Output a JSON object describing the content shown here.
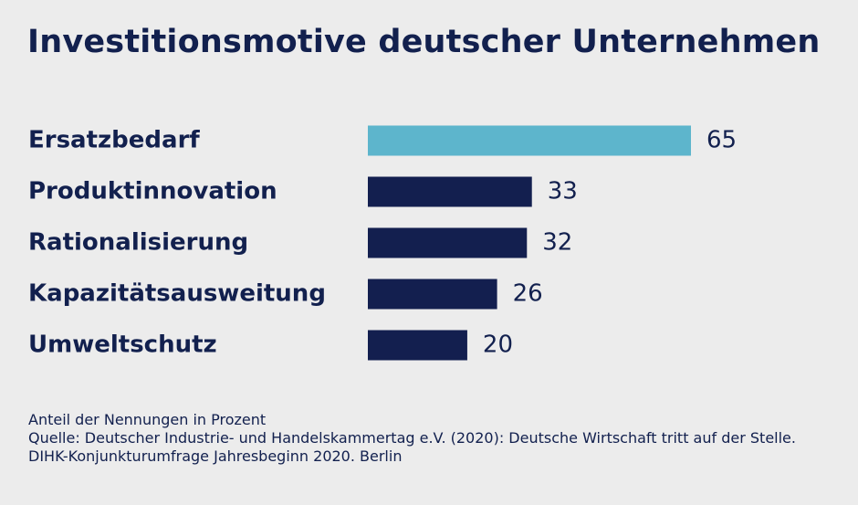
{
  "chart_data": {
    "type": "bar",
    "orientation": "horizontal",
    "title": "Investitionsmotive deutscher Unternehmen",
    "categories": [
      "Ersatzbedarf",
      "Produktinnovation",
      "Rationalisierung",
      "Kapazitätsausweitung",
      "Umweltschutz"
    ],
    "values": [
      65,
      33,
      32,
      26,
      20
    ],
    "value_labels": [
      "65",
      "33",
      "32",
      "26",
      "20"
    ],
    "colors": [
      "#5db5cc",
      "#131f4f",
      "#131f4f",
      "#131f4f",
      "#131f4f"
    ],
    "xlim": [
      0,
      65
    ],
    "grid": false,
    "unit_note": "Anteil der Nennungen in Prozent"
  },
  "source": "Quelle: Deutscher Industrie- und Handelskammertag e.V. (2020): Deutsche Wirtschaft tritt auf der Stelle. DIHK-Konjunkturumfrage Jahresbeginn 2020. Berlin"
}
